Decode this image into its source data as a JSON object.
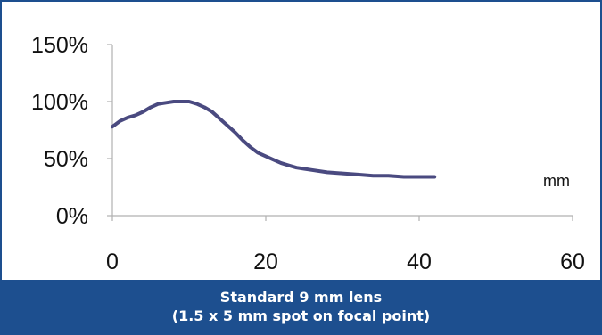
{
  "colors": {
    "frame": "#1d4f8f",
    "caption_bg": "#1d4f8f",
    "caption_text": "#ffffff",
    "line": "#4a4a80",
    "axis": "#b0b0b0"
  },
  "caption": {
    "line1": "Standard 9 mm lens",
    "line2": "(1.5 x 5 mm spot on focal point)"
  },
  "chart_data": {
    "type": "line",
    "title": "",
    "xlabel": "mm",
    "ylabel": "",
    "xlim": [
      0,
      60
    ],
    "ylim": [
      0,
      150
    ],
    "x_ticks": [
      0,
      20,
      40,
      60
    ],
    "y_ticks": [
      0,
      50,
      100,
      150
    ],
    "x_tick_labels": [
      "0",
      "20",
      "40",
      "60"
    ],
    "y_tick_labels": [
      "0%",
      "50%",
      "100%",
      "150%"
    ],
    "grid": false,
    "series": [
      {
        "x": [
          0,
          1,
          2,
          3,
          4,
          5,
          6,
          7,
          8,
          9,
          10,
          11,
          12,
          13,
          14,
          15,
          16,
          17,
          18,
          19,
          20,
          21,
          22,
          23,
          24,
          25,
          26,
          28,
          30,
          32,
          34,
          36,
          38,
          40,
          42
        ],
        "values": [
          78,
          83,
          86,
          88,
          91,
          95,
          98,
          99,
          100,
          100,
          100,
          98,
          95,
          91,
          85,
          79,
          73,
          66,
          60,
          55,
          52,
          49,
          46,
          44,
          42,
          41,
          40,
          38,
          37,
          36,
          35,
          35,
          34,
          34,
          34
        ]
      }
    ]
  }
}
